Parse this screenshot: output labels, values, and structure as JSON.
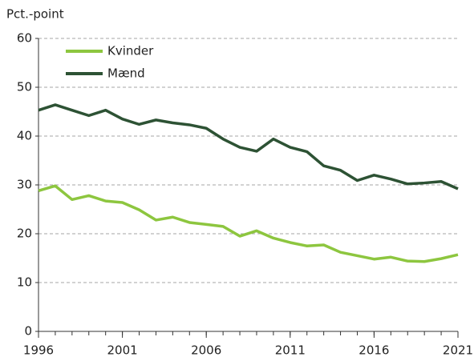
{
  "chart_data": {
    "type": "line",
    "y_label": "Pct.-point",
    "x": [
      1996,
      1997,
      1998,
      1999,
      2000,
      2001,
      2002,
      2003,
      2004,
      2005,
      2006,
      2007,
      2008,
      2009,
      2010,
      2011,
      2012,
      2013,
      2014,
      2015,
      2016,
      2017,
      2018,
      2019,
      2020,
      2021
    ],
    "series": [
      {
        "name": "Kvinder",
        "color": "#8dc63f",
        "values": [
          28.8,
          29.8,
          27.0,
          27.8,
          26.7,
          26.4,
          24.9,
          22.8,
          23.4,
          22.3,
          21.9,
          21.5,
          19.5,
          20.6,
          19.1,
          18.2,
          17.5,
          17.7,
          16.2,
          15.5,
          14.8,
          15.2,
          14.4,
          14.3,
          14.9,
          15.7
        ]
      },
      {
        "name": "Mænd",
        "color": "#2d5234",
        "values": [
          45.3,
          46.4,
          45.3,
          44.2,
          45.3,
          43.5,
          42.4,
          43.3,
          42.7,
          42.3,
          41.6,
          39.4,
          37.7,
          36.9,
          39.4,
          37.7,
          36.8,
          33.9,
          33.0,
          30.9,
          32.0,
          31.2,
          30.2,
          30.4,
          30.7,
          29.2
        ]
      }
    ],
    "xlim": [
      1996,
      2021
    ],
    "xticks": [
      1996,
      2001,
      2006,
      2011,
      2016,
      2021
    ],
    "ylim": [
      0,
      60
    ],
    "yticks": [
      0,
      10,
      20,
      30,
      40,
      50,
      60
    ],
    "grid": true,
    "legend": "upper left"
  }
}
